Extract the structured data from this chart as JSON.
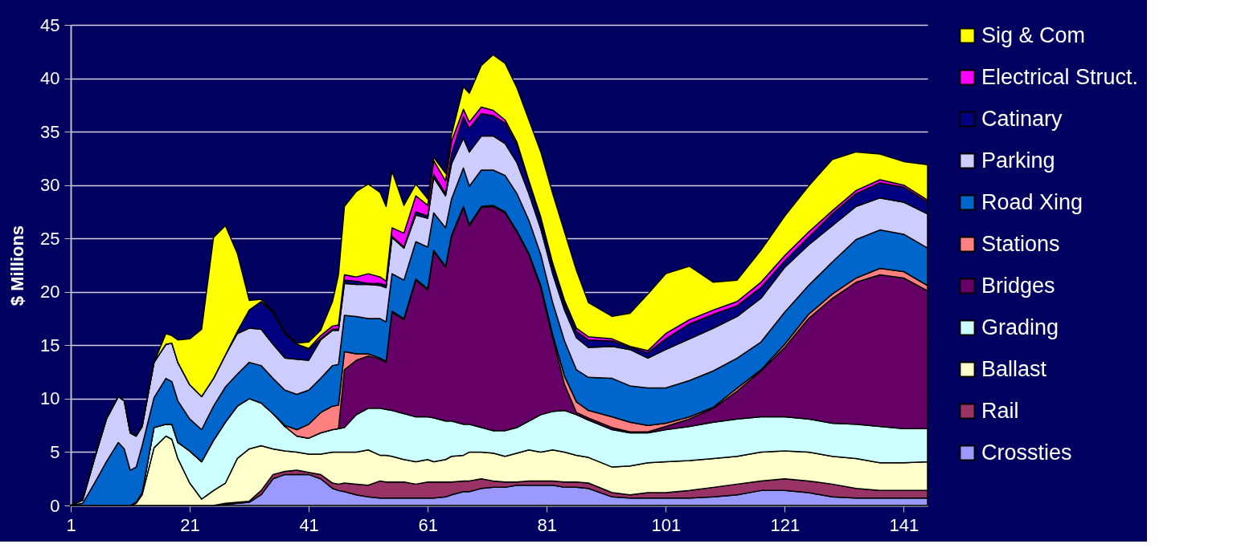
{
  "chart_data": {
    "type": "area",
    "stacked": true,
    "ylabel": "$ Millions",
    "legend": "right",
    "grid": "y",
    "xlim": [
      1,
      145
    ],
    "xticks": [
      1,
      21,
      41,
      61,
      81,
      101,
      121,
      141
    ],
    "ylim": [
      0,
      45
    ],
    "yticks": [
      0,
      5,
      10,
      15,
      20,
      25,
      30,
      35,
      40,
      45
    ],
    "x": [
      1,
      3,
      5,
      7,
      9,
      10,
      11,
      12,
      13,
      15,
      17,
      18,
      19,
      21,
      23,
      25,
      27,
      29,
      31,
      33,
      35,
      37,
      39,
      41,
      43,
      45,
      46,
      47,
      49,
      51,
      53,
      54,
      55,
      57,
      59,
      61,
      62,
      64,
      65,
      67,
      68,
      70,
      72,
      74,
      76,
      78,
      80,
      82,
      84,
      86,
      88,
      92,
      95,
      98,
      101,
      105,
      109,
      113,
      117,
      121,
      125,
      129,
      133,
      137,
      141,
      145
    ],
    "series": [
      {
        "name": "Crossties",
        "color": "#9999ff",
        "values": [
          0,
          0,
          0,
          0,
          0,
          0,
          0,
          0,
          0,
          0,
          0,
          0,
          0,
          0,
          0,
          0,
          0.1,
          0.2,
          0.3,
          1.0,
          2.5,
          2.9,
          2.9,
          2.9,
          2.5,
          1.6,
          1.4,
          1.3,
          1.0,
          0.8,
          0.7,
          0.7,
          0.7,
          0.7,
          0.7,
          0.7,
          0.7,
          0.8,
          1.0,
          1.3,
          1.3,
          1.6,
          1.7,
          1.7,
          1.9,
          1.9,
          1.9,
          1.9,
          1.7,
          1.7,
          1.6,
          0.8,
          0.7,
          0.7,
          0.7,
          0.7,
          0.8,
          1.0,
          1.4,
          1.4,
          1.2,
          0.8,
          0.7,
          0.7,
          0.7,
          0.7
        ]
      },
      {
        "name": "Rail",
        "color": "#993366",
        "values": [
          0,
          0,
          0,
          0,
          0,
          0,
          0,
          0,
          0,
          0,
          0,
          0,
          0,
          0,
          0,
          0,
          0.1,
          0.1,
          0.1,
          0.4,
          0.4,
          0.3,
          0.4,
          0.2,
          0.4,
          0.5,
          0.6,
          0.8,
          1.0,
          1.1,
          1.6,
          1.5,
          1.5,
          1.5,
          1.3,
          1.5,
          1.5,
          1.4,
          1.2,
          1.0,
          1.0,
          0.9,
          0.6,
          0.5,
          0.3,
          0.4,
          0.4,
          0.4,
          0.5,
          0.5,
          0.5,
          0.4,
          0.3,
          0.5,
          0.5,
          0.7,
          0.9,
          1.0,
          0.9,
          1.1,
          1.1,
          1.2,
          0.9,
          0.7,
          0.7,
          0.7
        ]
      },
      {
        "name": "Ballast",
        "color": "#ffffcc",
        "values": [
          0,
          0,
          0,
          0,
          0,
          0,
          0,
          0.2,
          1.0,
          5.4,
          6.5,
          6.2,
          4.4,
          2.1,
          0.6,
          1.4,
          1.9,
          4.1,
          4.9,
          4.2,
          2.4,
          1.9,
          1.7,
          1.7,
          1.9,
          2.9,
          3.0,
          2.9,
          3.0,
          3.3,
          2.4,
          2.5,
          2.4,
          2.1,
          2.1,
          2.1,
          1.9,
          2.1,
          2.4,
          2.4,
          2.7,
          2.5,
          2.6,
          2.4,
          2.7,
          2.9,
          2.7,
          2.9,
          2.8,
          2.5,
          2.4,
          2.4,
          2.7,
          2.8,
          2.9,
          2.8,
          2.7,
          2.6,
          2.7,
          2.6,
          2.7,
          2.6,
          2.8,
          2.6,
          2.6,
          2.7
        ]
      },
      {
        "name": "Grading",
        "color": "#ccffff",
        "values": [
          0,
          0,
          0,
          0,
          0,
          0,
          0,
          0.1,
          0.2,
          1.9,
          1.1,
          1.4,
          1.5,
          3.0,
          3.5,
          4.7,
          5.7,
          4.9,
          4.7,
          4.0,
          3.3,
          2.3,
          1.5,
          1.5,
          2.0,
          2.1,
          2.2,
          2.3,
          3.5,
          3.9,
          4.4,
          4.3,
          4.3,
          4.3,
          4.2,
          4.0,
          4.1,
          3.6,
          3.3,
          2.9,
          2.6,
          2.3,
          2.1,
          2.4,
          2.4,
          2.7,
          3.5,
          3.6,
          3.9,
          3.8,
          3.5,
          3.5,
          3.1,
          2.8,
          3.0,
          3.2,
          3.4,
          3.5,
          3.3,
          3.2,
          3.1,
          3.1,
          3.2,
          3.4,
          3.2,
          3.1
        ]
      },
      {
        "name": "Bridges",
        "color": "#660066",
        "values": [
          0,
          0,
          0,
          0,
          0,
          0,
          0,
          0,
          0,
          0,
          0,
          0,
          0,
          0,
          0,
          0,
          0,
          0,
          0,
          0,
          0,
          0,
          0,
          0,
          0,
          0,
          0,
          5.4,
          5.1,
          4.9,
          4.6,
          4.4,
          9.2,
          8.8,
          12.8,
          11.9,
          15.6,
          14.4,
          17.3,
          20.3,
          18.6,
          20.6,
          21.0,
          20.4,
          18.3,
          15.6,
          11.9,
          6.9,
          2.4,
          0.2,
          0.2,
          0.2,
          0.1,
          0.1,
          0.3,
          0.7,
          1.3,
          2.6,
          4.3,
          6.5,
          9.4,
          11.7,
          13.3,
          14.2,
          14.1,
          12.9
        ]
      },
      {
        "name": "Stations",
        "color": "#ff8080",
        "values": [
          0,
          0,
          0,
          0,
          0,
          0,
          0,
          0,
          0,
          0,
          0,
          0,
          0,
          0,
          0,
          0,
          0,
          0,
          0,
          0,
          0,
          0.1,
          0.6,
          1.3,
          1.9,
          2.2,
          2.2,
          1.7,
          0.6,
          0.2,
          0.1,
          0.1,
          0.1,
          0.1,
          0.1,
          0.1,
          0.1,
          0.1,
          0.1,
          0.1,
          0.1,
          0.1,
          0.1,
          0.1,
          0.1,
          0.1,
          0.2,
          0.3,
          0.8,
          1.0,
          0.7,
          1.0,
          0.9,
          0.6,
          0.3,
          0.2,
          0.1,
          0.3,
          0.1,
          0.3,
          0.4,
          0.4,
          0.4,
          0.6,
          0.6,
          0.5
        ]
      },
      {
        "name": "Road Xing",
        "color": "#0066cc",
        "values": [
          0,
          0.2,
          2.1,
          4.1,
          5.9,
          5.3,
          3.3,
          3.3,
          4.4,
          2.8,
          4.3,
          4.0,
          3.9,
          3.0,
          3.0,
          3.2,
          3.3,
          3.0,
          3.4,
          3.5,
          3.3,
          3.3,
          3.3,
          3.2,
          3.2,
          3.8,
          3.8,
          3.4,
          3.5,
          3.3,
          3.7,
          3.7,
          3.5,
          3.6,
          3.5,
          3.9,
          3.5,
          3.6,
          3.4,
          3.6,
          3.6,
          3.4,
          3.3,
          3.4,
          3.5,
          3.1,
          2.9,
          3.0,
          3.3,
          3.0,
          3.1,
          3.6,
          3.4,
          3.5,
          3.3,
          3.4,
          3.4,
          2.8,
          2.6,
          3.0,
          2.7,
          3.0,
          3.6,
          3.6,
          3.5,
          3.5
        ]
      },
      {
        "name": "Parking",
        "color": "#ccccff",
        "values": [
          0,
          0.3,
          2.3,
          4.0,
          4.3,
          4.5,
          3.5,
          2.9,
          1.8,
          3.3,
          3.2,
          3.6,
          3.6,
          3.2,
          3.1,
          2.6,
          3.0,
          3.8,
          3.2,
          3.4,
          3.2,
          3.0,
          3.3,
          2.8,
          3.6,
          3.3,
          3.2,
          3.0,
          3.0,
          3.2,
          3.1,
          3.2,
          3.4,
          3.0,
          2.5,
          2.7,
          3.3,
          3.0,
          3.3,
          2.8,
          3.2,
          3.2,
          3.2,
          3.0,
          2.9,
          2.5,
          2.4,
          2.7,
          2.9,
          3.0,
          2.8,
          3.0,
          3.4,
          2.8,
          3.6,
          3.9,
          4.0,
          3.9,
          4.1,
          4.2,
          3.8,
          3.4,
          3.1,
          3.0,
          3.0,
          3.2
        ]
      },
      {
        "name": "Catinary",
        "color": "#000080",
        "values": [
          0,
          0,
          0,
          0,
          0,
          0,
          0,
          0,
          0,
          0,
          0,
          0,
          0,
          0,
          0,
          0,
          0,
          0.2,
          1.7,
          2.6,
          3.0,
          2.3,
          1.4,
          1.0,
          0.1,
          0.1,
          0.1,
          0.3,
          0.3,
          0.1,
          0.2,
          0.2,
          0.1,
          0.1,
          0.3,
          0.2,
          0.3,
          0.2,
          0.9,
          2.0,
          2.2,
          2.1,
          1.9,
          1.9,
          1.6,
          1.0,
          0.8,
          0.7,
          0.6,
          0.6,
          0.7,
          0.5,
          0.2,
          0.5,
          1.0,
          1.4,
          1.3,
          1.0,
          1.0,
          0.6,
          0.7,
          1.1,
          1.2,
          1.4,
          1.4,
          1.1
        ]
      },
      {
        "name": "Electrical Struct.",
        "color": "#ff00ff",
        "values": [
          0,
          0,
          0,
          0,
          0,
          0,
          0,
          0,
          0,
          0,
          0,
          0,
          0,
          0,
          0,
          0,
          0,
          0,
          0,
          0,
          0,
          0,
          0,
          0.1,
          0.3,
          0.3,
          0.4,
          0.5,
          0.4,
          0.9,
          0.6,
          0.4,
          0.8,
          1.3,
          1.5,
          1.0,
          1.3,
          1.2,
          1.2,
          0.7,
          0.6,
          0.6,
          0.5,
          0.3,
          0.3,
          0.2,
          0.3,
          0.3,
          0.3,
          0.3,
          0.3,
          0.2,
          0.1,
          0.2,
          0.5,
          0.4,
          0.4,
          0.4,
          0.5,
          0.5,
          0.5,
          0.3,
          0.3,
          0.3,
          0.2,
          0.2
        ]
      },
      {
        "name": "Sig & Com",
        "color": "#ffff00",
        "values": [
          0,
          0,
          0,
          0,
          0,
          0,
          0,
          0,
          0,
          0,
          1.0,
          0.7,
          2.1,
          4.3,
          6.3,
          13.2,
          12.1,
          7.3,
          0.9,
          0.2,
          0.1,
          0.1,
          0.1,
          0.6,
          0.5,
          2.3,
          4.7,
          6.4,
          8.0,
          8.4,
          7.9,
          7.0,
          5.3,
          2.6,
          1.1,
          0.6,
          0.3,
          0.7,
          0.6,
          2.1,
          2.7,
          3.9,
          5.2,
          5.3,
          5.1,
          5.7,
          6.1,
          6.5,
          6.4,
          5.4,
          3.2,
          2.1,
          3.1,
          5.3,
          5.6,
          5.0,
          2.6,
          2.0,
          3.0,
          3.7,
          4.3,
          4.8,
          3.6,
          2.4,
          2.2,
          3.3
        ]
      }
    ]
  }
}
